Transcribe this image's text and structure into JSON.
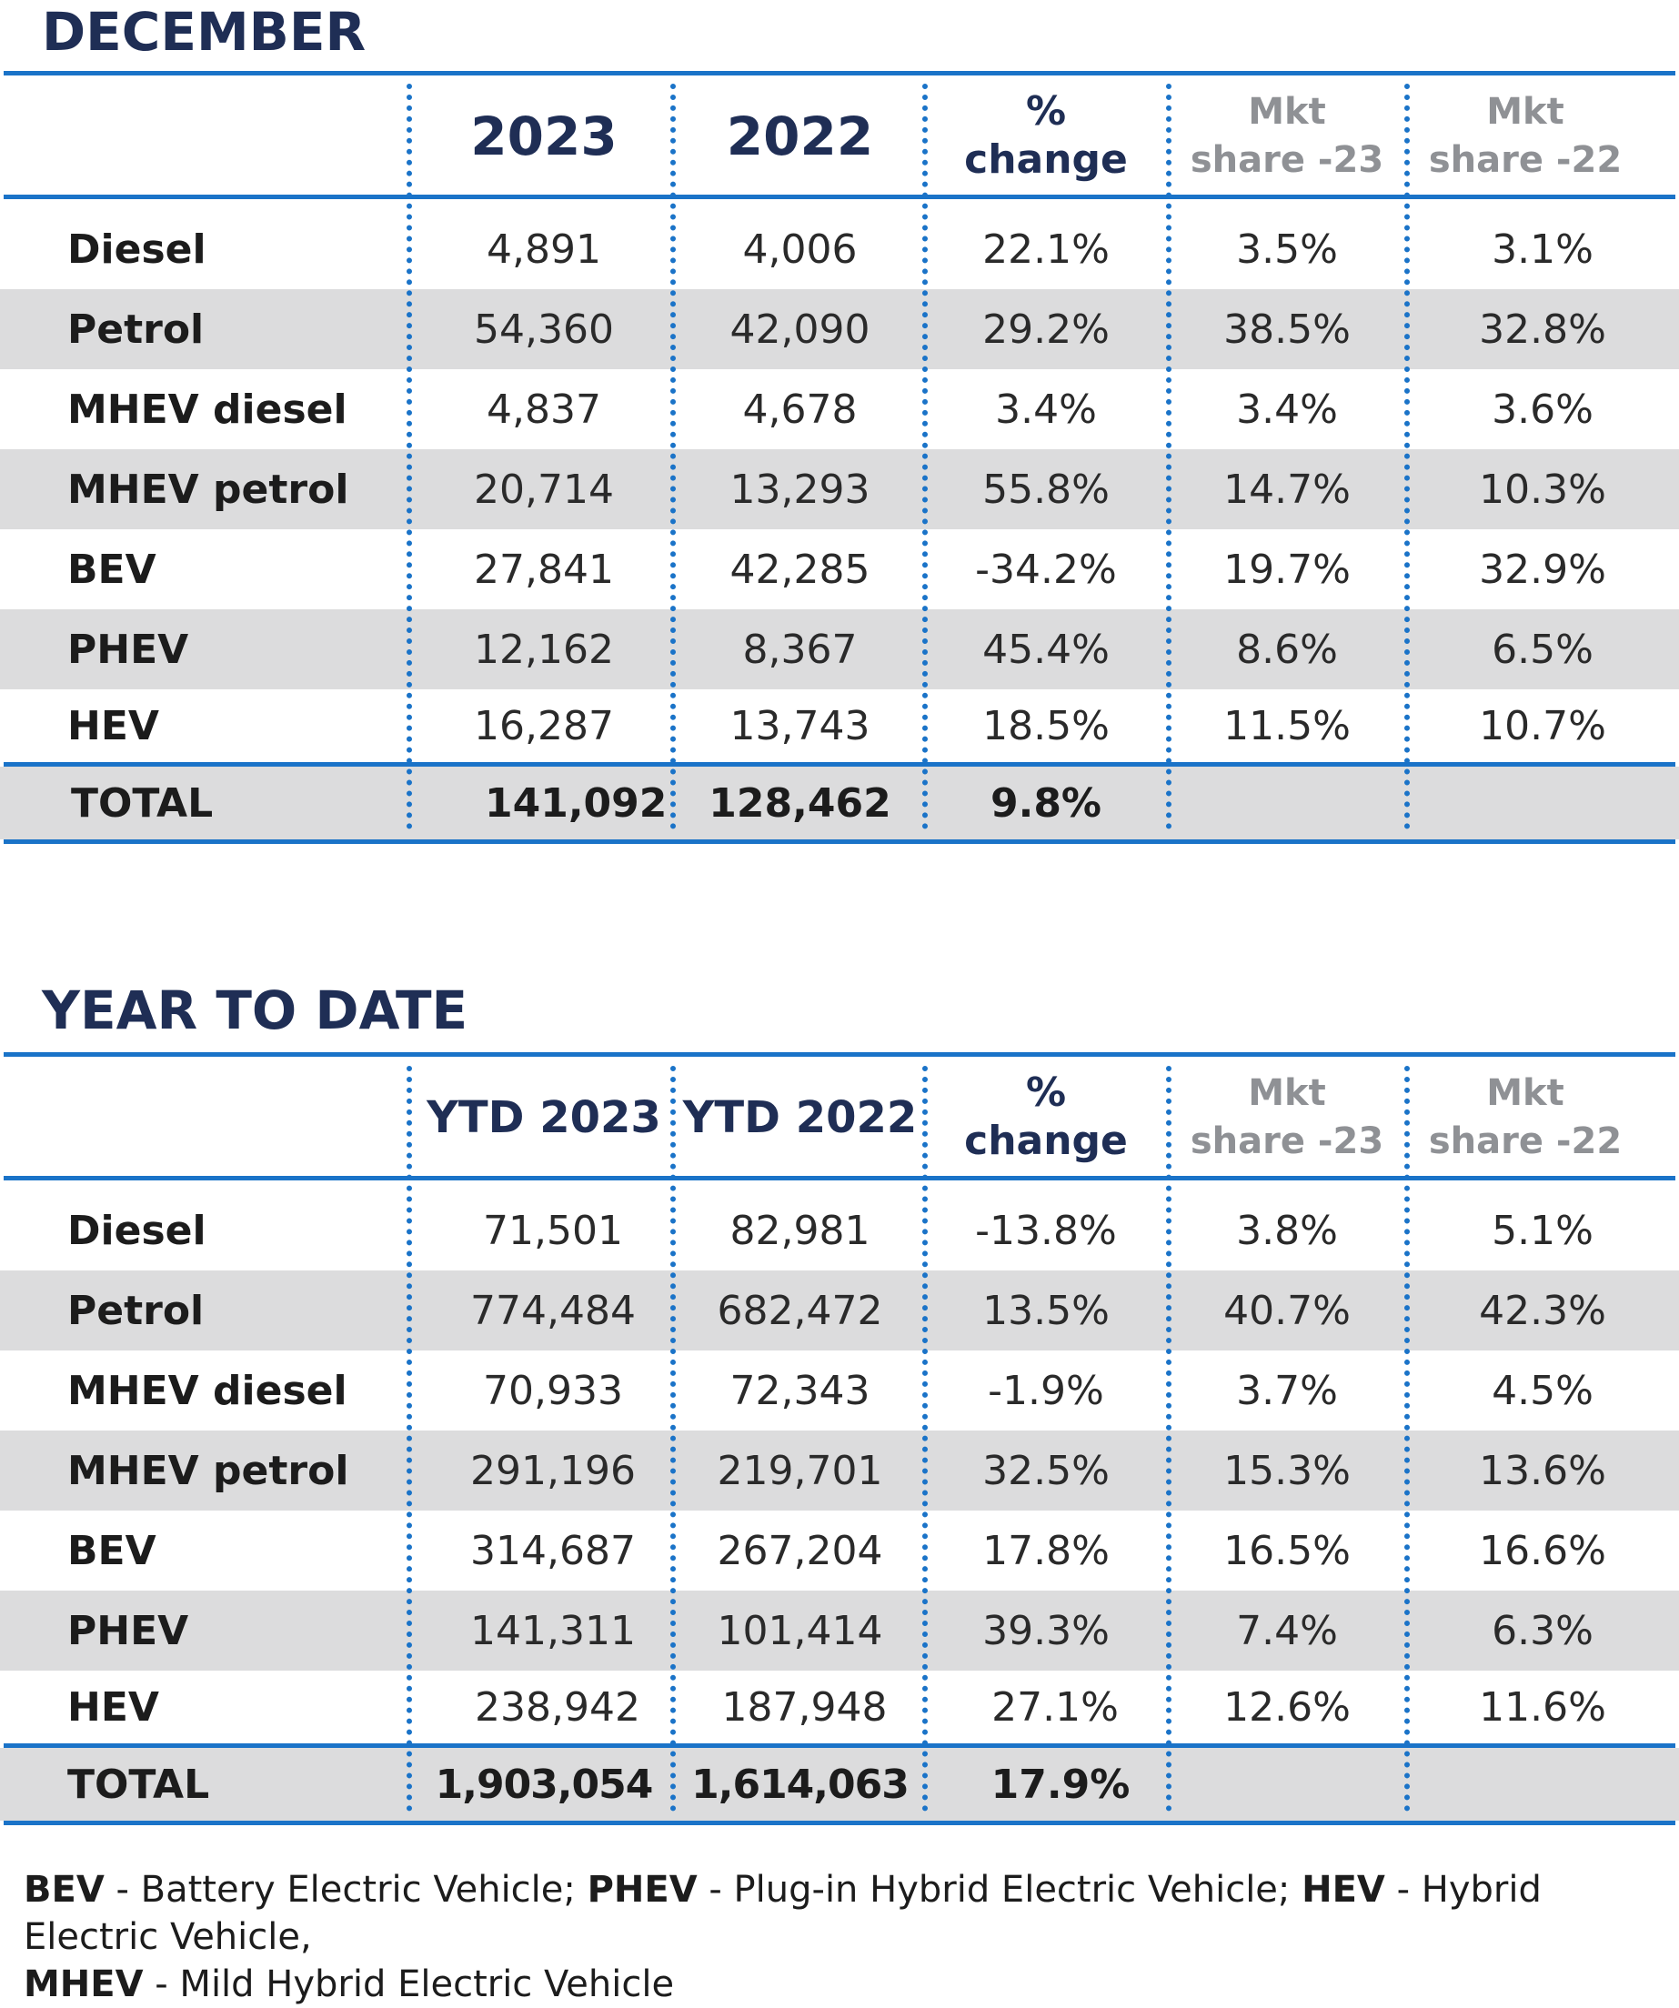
{
  "december": {
    "title": "DECEMBER",
    "headers": {
      "col1": "2023",
      "col2": "2022",
      "pct_line1": "%",
      "pct_line2": "change",
      "mkt23_line1": "Mkt",
      "mkt23_line2": "share -23",
      "mkt22_line1": "Mkt",
      "mkt22_line2": "share -22"
    },
    "rows": [
      {
        "label": "Diesel",
        "c1": "4,891",
        "c2": "4,006",
        "pct": "22.1%",
        "m23": "3.5%",
        "m22": "3.1%"
      },
      {
        "label": "Petrol",
        "c1": "54,360",
        "c2": "42,090",
        "pct": "29.2%",
        "m23": "38.5%",
        "m22": "32.8%"
      },
      {
        "label": "MHEV diesel",
        "c1": "4,837",
        "c2": "4,678",
        "pct": "3.4%",
        "m23": "3.4%",
        "m22": "3.6%"
      },
      {
        "label": "MHEV petrol",
        "c1": "20,714",
        "c2": "13,293",
        "pct": "55.8%",
        "m23": "14.7%",
        "m22": "10.3%"
      },
      {
        "label": "BEV",
        "c1": "27,841",
        "c2": "42,285",
        "pct": "-34.2%",
        "m23": "19.7%",
        "m22": "32.9%"
      },
      {
        "label": "PHEV",
        "c1": "12,162",
        "c2": "8,367",
        "pct": "45.4%",
        "m23": "8.6%",
        "m22": "6.5%"
      },
      {
        "label": "HEV",
        "c1": "16,287",
        "c2": "13,743",
        "pct": "18.5%",
        "m23": "11.5%",
        "m22": "10.7%"
      }
    ],
    "total": {
      "label": "TOTAL",
      "c1": "141,092",
      "c2": "128,462",
      "pct": "9.8%"
    }
  },
  "ytd": {
    "title": "YEAR TO DATE",
    "headers": {
      "col1": "YTD 2023",
      "col2": "YTD 2022",
      "pct_line1": "%",
      "pct_line2": "change",
      "mkt23_line1": "Mkt",
      "mkt23_line2": "share -23",
      "mkt22_line1": "Mkt",
      "mkt22_line2": "share -22"
    },
    "rows": [
      {
        "label": "Diesel",
        "c1": "71,501",
        "c2": "82,981",
        "pct": "-13.8%",
        "m23": "3.8%",
        "m22": "5.1%"
      },
      {
        "label": "Petrol",
        "c1": "774,484",
        "c2": "682,472",
        "pct": "13.5%",
        "m23": "40.7%",
        "m22": "42.3%"
      },
      {
        "label": "MHEV diesel",
        "c1": "70,933",
        "c2": "72,343",
        "pct": "-1.9%",
        "m23": "3.7%",
        "m22": "4.5%"
      },
      {
        "label": "MHEV petrol",
        "c1": "291,196",
        "c2": "219,701",
        "pct": "32.5%",
        "m23": "15.3%",
        "m22": "13.6%"
      },
      {
        "label": "BEV",
        "c1": "314,687",
        "c2": "267,204",
        "pct": "17.8%",
        "m23": "16.5%",
        "m22": "16.6%"
      },
      {
        "label": "PHEV",
        "c1": "141,311",
        "c2": "101,414",
        "pct": "39.3%",
        "m23": "7.4%",
        "m22": "6.3%"
      },
      {
        "label": "HEV",
        "c1": "238,942",
        "c2": "187,948",
        "pct": "27.1%",
        "m23": "12.6%",
        "m22": "11.6%"
      }
    ],
    "total": {
      "label": "TOTAL",
      "c1": "1,903,054",
      "c2": "1,614,063",
      "pct": "17.9%"
    }
  },
  "footnote": {
    "bev_abbr": "BEV",
    "bev_text": " - Battery Electric Vehicle; ",
    "phev_abbr": "PHEV",
    "phev_text": " - Plug-in Hybrid Electric Vehicle; ",
    "hev_abbr": "HEV",
    "hev_text": " - Hybrid Electric Vehicle,",
    "mhev_abbr": "MHEV",
    "mhev_text": " - Mild Hybrid Electric Vehicle"
  },
  "colors": {
    "accent": "#1a73c8",
    "title": "#1f2e55",
    "shade": "#dcdcdd",
    "muted": "#8f9195"
  }
}
